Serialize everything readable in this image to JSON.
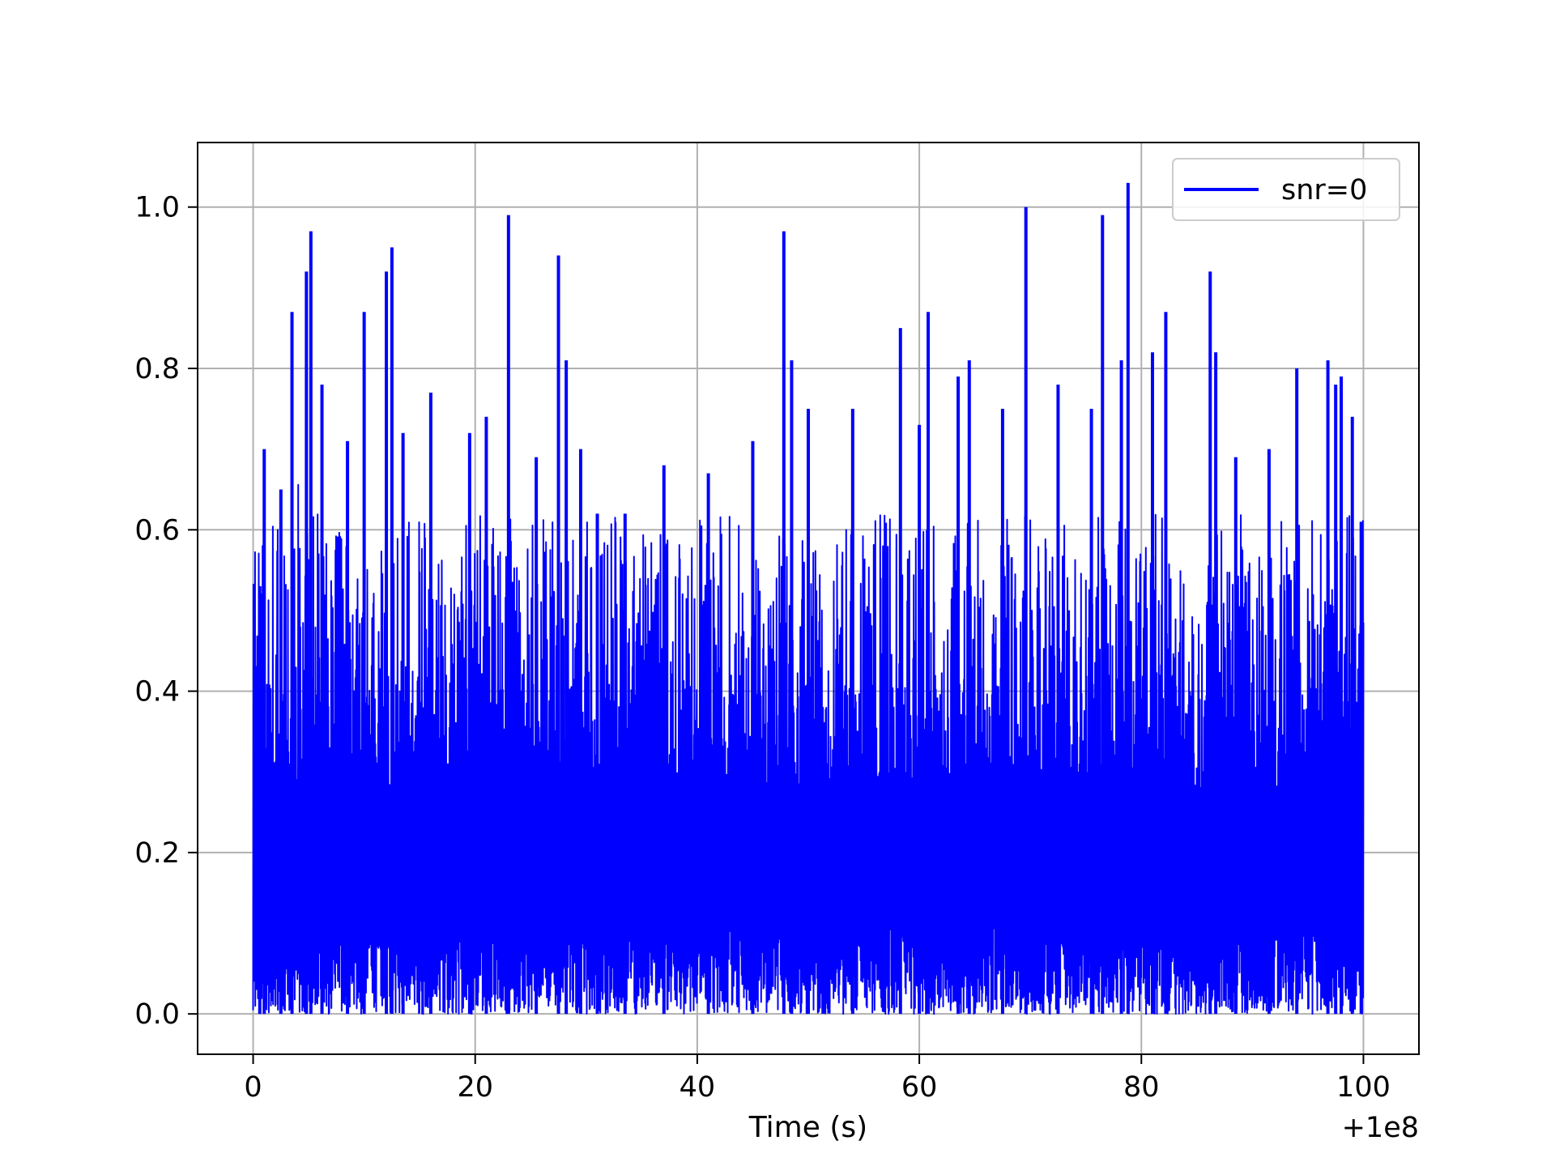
{
  "chart_data": {
    "type": "line",
    "title": "",
    "xlabel": "Time (s)",
    "ylabel": "",
    "x_offset_label": "+1e8",
    "xlim": [
      -5,
      105
    ],
    "ylim": [
      -0.05,
      1.08
    ],
    "x_ticks": [
      0,
      20,
      40,
      60,
      80,
      100
    ],
    "x_tick_labels": [
      "0",
      "20",
      "40",
      "60",
      "80",
      "100"
    ],
    "y_ticks": [
      0.0,
      0.2,
      0.4,
      0.6,
      0.8,
      1.0
    ],
    "y_tick_labels": [
      "0.0",
      "0.2",
      "0.4",
      "0.6",
      "0.8",
      "1.0"
    ],
    "grid": true,
    "legend_position": "top-right",
    "series": [
      {
        "name": "snr=0",
        "color": "#0000ff",
        "x_range": [
          0,
          100
        ],
        "value_range": [
          0.0,
          1.03
        ],
        "peaks": [
          {
            "x": 0.6,
            "y": 0.53
          },
          {
            "x": 1.0,
            "y": 0.7
          },
          {
            "x": 2.5,
            "y": 0.65
          },
          {
            "x": 3.5,
            "y": 0.87
          },
          {
            "x": 4.8,
            "y": 0.92
          },
          {
            "x": 5.2,
            "y": 0.97
          },
          {
            "x": 6.2,
            "y": 0.78
          },
          {
            "x": 8.5,
            "y": 0.71
          },
          {
            "x": 10.0,
            "y": 0.87
          },
          {
            "x": 12.0,
            "y": 0.92
          },
          {
            "x": 12.5,
            "y": 0.95
          },
          {
            "x": 13.5,
            "y": 0.72
          },
          {
            "x": 16.0,
            "y": 0.77
          },
          {
            "x": 19.5,
            "y": 0.72
          },
          {
            "x": 21.0,
            "y": 0.74
          },
          {
            "x": 23.0,
            "y": 0.99
          },
          {
            "x": 25.5,
            "y": 0.69
          },
          {
            "x": 27.5,
            "y": 0.94
          },
          {
            "x": 28.2,
            "y": 0.81
          },
          {
            "x": 29.5,
            "y": 0.7
          },
          {
            "x": 31.0,
            "y": 0.62
          },
          {
            "x": 33.5,
            "y": 0.62
          },
          {
            "x": 37.0,
            "y": 0.68
          },
          {
            "x": 41.0,
            "y": 0.67
          },
          {
            "x": 45.0,
            "y": 0.71
          },
          {
            "x": 47.8,
            "y": 0.97
          },
          {
            "x": 48.5,
            "y": 0.81
          },
          {
            "x": 50.0,
            "y": 0.75
          },
          {
            "x": 54.0,
            "y": 0.75
          },
          {
            "x": 58.3,
            "y": 0.85
          },
          {
            "x": 60.0,
            "y": 0.73
          },
          {
            "x": 60.8,
            "y": 0.87
          },
          {
            "x": 63.5,
            "y": 0.79
          },
          {
            "x": 64.5,
            "y": 0.81
          },
          {
            "x": 67.5,
            "y": 0.75
          },
          {
            "x": 69.6,
            "y": 1.0
          },
          {
            "x": 72.5,
            "y": 0.78
          },
          {
            "x": 75.5,
            "y": 0.75
          },
          {
            "x": 76.5,
            "y": 0.99
          },
          {
            "x": 78.2,
            "y": 0.81
          },
          {
            "x": 78.8,
            "y": 1.03
          },
          {
            "x": 81.0,
            "y": 0.82
          },
          {
            "x": 82.2,
            "y": 0.87
          },
          {
            "x": 86.2,
            "y": 0.92
          },
          {
            "x": 86.7,
            "y": 0.82
          },
          {
            "x": 88.5,
            "y": 0.69
          },
          {
            "x": 91.5,
            "y": 0.7
          },
          {
            "x": 94.0,
            "y": 0.8
          },
          {
            "x": 96.8,
            "y": 0.81
          },
          {
            "x": 97.5,
            "y": 0.78
          },
          {
            "x": 98.0,
            "y": 0.79
          },
          {
            "x": 99.0,
            "y": 0.74
          },
          {
            "x": 99.8,
            "y": 0.61
          }
        ]
      }
    ]
  }
}
